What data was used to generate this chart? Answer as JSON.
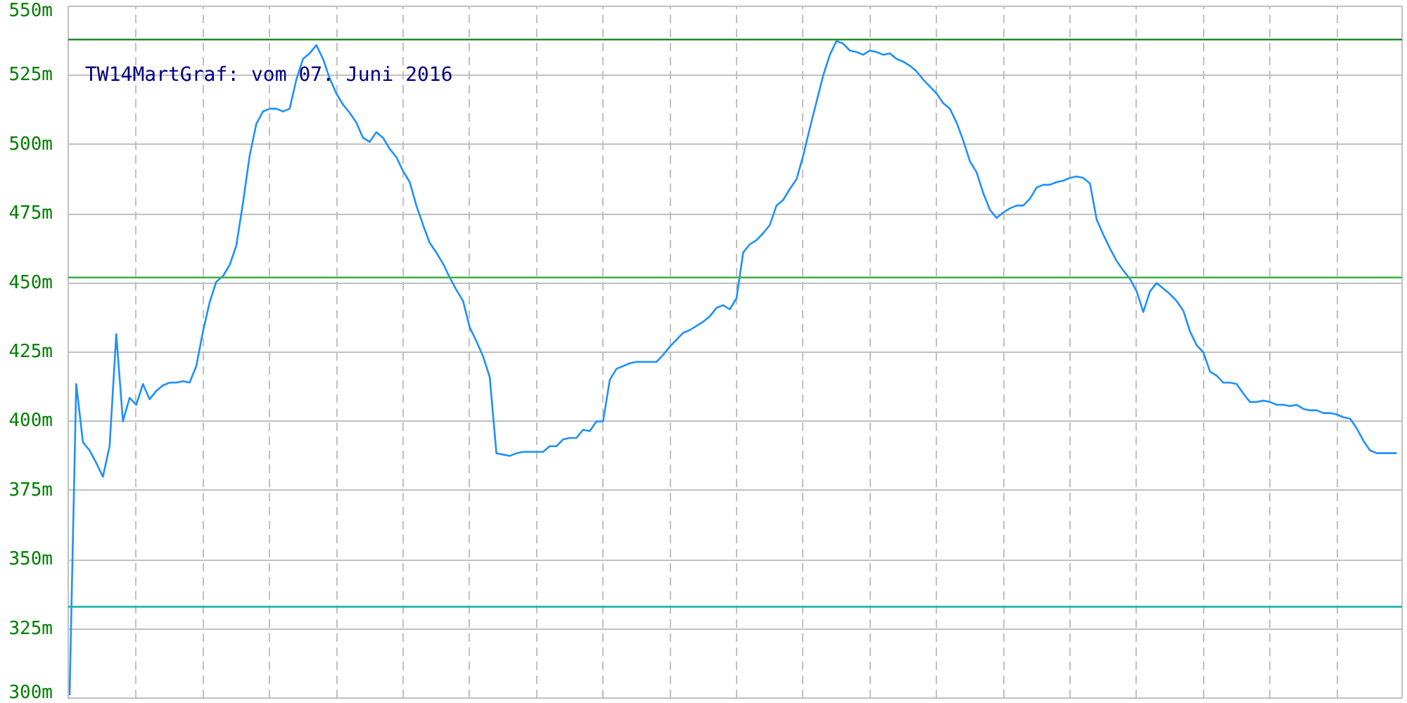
{
  "chart_data": {
    "type": "line",
    "title": "TW14MartGraf: vom 07. Juni 2016",
    "categories": [
      null,
      null,
      null,
      null,
      null,
      null,
      null,
      null,
      null,
      null,
      null,
      null,
      null,
      null,
      null,
      null,
      null,
      null,
      null,
      null,
      null,
      null,
      null,
      null,
      null,
      null,
      null,
      null,
      null,
      null,
      null,
      null,
      null,
      null,
      null,
      null,
      null,
      null,
      null,
      null,
      null,
      null,
      null,
      null,
      null,
      null,
      null,
      null,
      null,
      null,
      null,
      null,
      null,
      null,
      null,
      null,
      null,
      null,
      null,
      null,
      null,
      null,
      null,
      null,
      null,
      null,
      null,
      null,
      null,
      null,
      null,
      null,
      null,
      null,
      null,
      null,
      null,
      null,
      null,
      null,
      null,
      null,
      null,
      null,
      null,
      null,
      null,
      null,
      null,
      null,
      null,
      null,
      null,
      null,
      null,
      null,
      null,
      null,
      null,
      null,
      null,
      null,
      null,
      null,
      null,
      null,
      null,
      null,
      null,
      null,
      null,
      null,
      null,
      null,
      null,
      null,
      null,
      null,
      null,
      null,
      null,
      null,
      null,
      null,
      null,
      null,
      null,
      null,
      null,
      null,
      null,
      null,
      null,
      null,
      null,
      null,
      null,
      null,
      null,
      null,
      null,
      null,
      null,
      null,
      null,
      null,
      null,
      null,
      null,
      null,
      null,
      null,
      null,
      null,
      null,
      null,
      null,
      null,
      null,
      null,
      null,
      null,
      null,
      null,
      null,
      null,
      null,
      null,
      null,
      null,
      null,
      null,
      null,
      null,
      null,
      null,
      null,
      null,
      null,
      null,
      null,
      null,
      null,
      null,
      null,
      null,
      null,
      null,
      null,
      null,
      null,
      null,
      null,
      null,
      null,
      null,
      null,
      null,
      null,
      null
    ],
    "series": [
      {
        "color": "#1e90ff",
        "values": [
          301,
          413.5,
          392.5,
          389.5,
          385,
          380,
          391,
          431.5,
          400,
          408.5,
          406,
          413.5,
          408,
          411,
          413,
          414,
          414,
          414.5,
          414,
          420,
          432.5,
          443,
          450.5,
          452.5,
          456.5,
          463.5,
          479,
          496,
          507.5,
          512,
          513,
          513,
          512,
          513,
          523.5,
          531,
          533,
          536,
          531,
          524,
          518.5,
          514.5,
          511.5,
          508,
          502.5,
          501,
          504.5,
          502.5,
          498.5,
          495.5,
          490.5,
          486.5,
          478,
          471,
          464.5,
          461,
          457,
          452,
          447.5,
          443.5,
          434,
          429,
          423.5,
          416,
          388.5,
          388,
          387.5,
          388.5,
          389,
          389,
          389,
          389,
          391,
          391,
          393.5,
          394,
          394,
          397,
          396.5,
          400,
          400,
          415,
          419,
          420,
          421,
          421.5,
          421.5,
          421.5,
          421.5,
          424,
          427,
          429.5,
          432,
          433,
          434.5,
          436,
          438,
          441,
          442,
          440.5,
          444.5,
          461,
          464,
          465.5,
          468,
          471,
          478,
          480,
          484,
          487.5,
          496,
          506,
          515.5,
          525,
          532.5,
          537.5,
          536.5,
          534,
          533.5,
          532.5,
          534,
          533.5,
          532.5,
          533,
          531,
          530,
          528.5,
          526.5,
          523.5,
          521,
          518.5,
          515,
          513,
          508,
          501.5,
          494,
          490,
          482.5,
          476.5,
          473.5,
          475.5,
          477,
          478,
          478,
          480.5,
          484.5,
          485.5,
          485.5,
          486.5,
          487,
          488,
          488.5,
          488,
          486,
          473,
          467.5,
          462.5,
          458,
          454.5,
          451.5,
          447,
          439.5,
          447,
          450,
          448,
          446,
          443.5,
          440,
          432.5,
          427.5,
          425,
          418,
          416.5,
          414,
          414,
          413.5,
          410,
          407,
          407,
          407.5,
          407,
          406,
          406,
          405.5,
          406,
          404.5,
          404,
          404,
          403,
          403,
          402.5,
          401.5,
          401,
          397.5,
          393,
          389.5,
          388.5,
          388.5,
          388.5,
          388.5
        ]
      }
    ],
    "ylim": [
      300,
      550
    ],
    "yticks": [
      {
        "value": 300,
        "label": "300m"
      },
      {
        "value": 325,
        "label": "325m"
      },
      {
        "value": 350,
        "label": "350m"
      },
      {
        "value": 375,
        "label": "375m"
      },
      {
        "value": 400,
        "label": "400m"
      },
      {
        "value": 425,
        "label": "425m"
      },
      {
        "value": 450,
        "label": "450m"
      },
      {
        "value": 475,
        "label": "475m"
      },
      {
        "value": 500,
        "label": "500m"
      },
      {
        "value": 525,
        "label": "525m"
      },
      {
        "value": 550,
        "label": "550m"
      }
    ],
    "ref_lines": [
      {
        "axis": "y",
        "value": 538,
        "color": "#228b22"
      },
      {
        "axis": "y",
        "value": 452,
        "color": "#3cb043"
      },
      {
        "axis": "y",
        "value": 333,
        "color": "#20b2aa"
      }
    ],
    "grid": true,
    "tick_labels": "y",
    "marker": "none",
    "line_style": "solid"
  }
}
